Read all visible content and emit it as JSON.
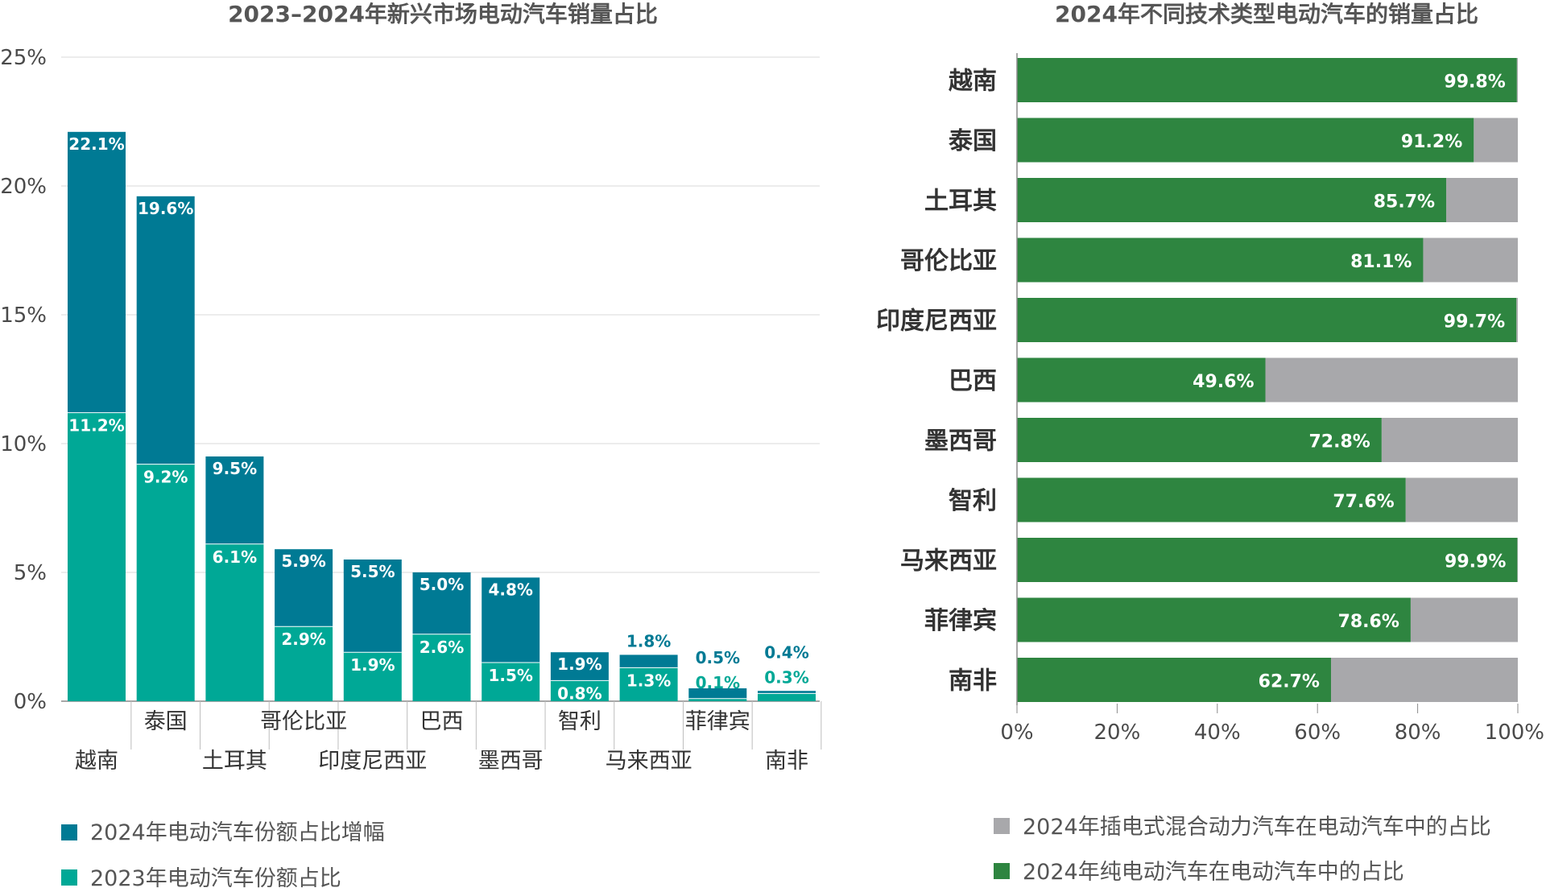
{
  "chart_data": [
    {
      "type": "bar",
      "stacked": true,
      "title": "2023–2024年新兴市场电动汽车销量占比",
      "categories": [
        "越南",
        "泰国",
        "土耳其",
        "哥伦比亚",
        "印度尼西亚",
        "巴西",
        "墨西哥",
        "智利",
        "马来西亚",
        "菲律宾",
        "南非"
      ],
      "series": [
        {
          "name": "2023年电动汽车份额占比",
          "color": "#00a896",
          "values": [
            11.2,
            9.2,
            6.1,
            2.9,
            1.9,
            2.6,
            1.5,
            0.8,
            1.3,
            0.1,
            0.3
          ],
          "labels": [
            "11.2%",
            "9.2%",
            "6.1%",
            "2.9%",
            "1.9%",
            "2.6%",
            "1.5%",
            "0.8%",
            "1.3%",
            "0.1%",
            "0.3%"
          ]
        },
        {
          "name": "2024年电动汽车份额占比增幅",
          "color": "#007a94",
          "values": [
            10.9,
            10.4,
            3.4,
            3.0,
            3.6,
            2.4,
            3.3,
            1.1,
            0.5,
            0.4,
            0.1
          ],
          "labels": [
            "22.1%",
            "19.6%",
            "9.5%",
            "5.9%",
            "5.5%",
            "5.0%",
            "4.8%",
            "1.9%",
            "1.8%",
            "0.5%",
            "0.4%"
          ]
        }
      ],
      "totals": [
        22.1,
        19.6,
        9.5,
        5.9,
        5.5,
        5.0,
        4.8,
        1.9,
        1.8,
        0.5,
        0.4
      ],
      "ylim": [
        0,
        25
      ],
      "yticks": [
        "0%",
        "5%",
        "10%",
        "15%",
        "20%",
        "25%"
      ],
      "grid": true,
      "legend": "bottom"
    },
    {
      "type": "bar",
      "orientation": "horizontal",
      "stacked": true,
      "title": "2024年不同技术类型电动汽车的销量占比",
      "categories": [
        "越南",
        "泰国",
        "土耳其",
        "哥伦比亚",
        "印度尼西亚",
        "巴西",
        "墨西哥",
        "智利",
        "马来西亚",
        "菲律宾",
        "南非"
      ],
      "series": [
        {
          "name": "2024年纯电动汽车在电动汽车中的占比",
          "color": "#2e8540",
          "values": [
            99.8,
            91.2,
            85.7,
            81.1,
            99.7,
            49.6,
            72.8,
            77.6,
            99.9,
            78.6,
            62.7
          ],
          "labels": [
            "99.8%",
            "91.2%",
            "85.7%",
            "81.1%",
            "99.7%",
            "49.6%",
            "72.8%",
            "77.6%",
            "99.9%",
            "78.6%",
            "62.7%"
          ]
        },
        {
          "name": "2024年插电式混合动力汽车在电动汽车中的占比",
          "color": "#a8a8ab",
          "values": [
            0.2,
            8.8,
            14.3,
            18.9,
            0.3,
            50.4,
            27.2,
            22.4,
            0.1,
            21.4,
            37.3
          ]
        }
      ],
      "xlim": [
        0,
        100
      ],
      "xticks": [
        "0%",
        "20%",
        "40%",
        "60%",
        "80%",
        "100%"
      ],
      "legend": "bottom"
    }
  ]
}
